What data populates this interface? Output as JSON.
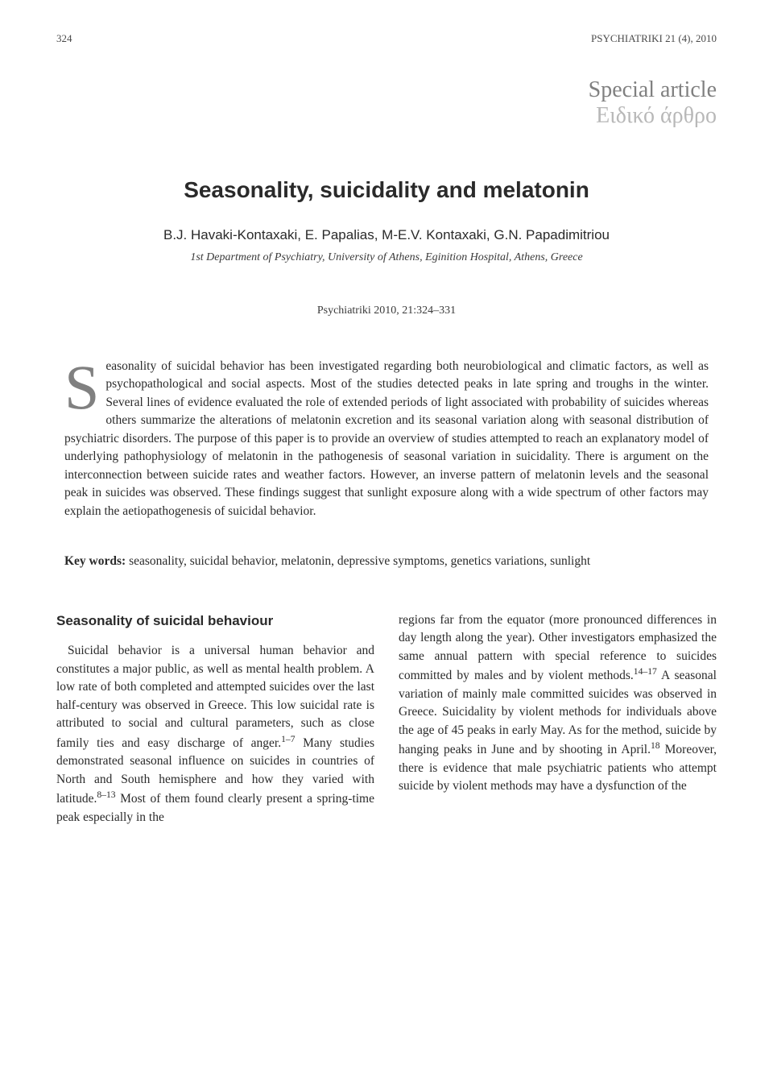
{
  "runningHead": {
    "pageNumber": "324",
    "journalRef": "PSYCHIATRIKI 21 (4), 2010"
  },
  "articleType": {
    "english": "Special article",
    "greek": "Ειδικό άρθρο"
  },
  "title": "Seasonality, suicidality and melatonin",
  "authors": "B.J. Havaki-Kontaxaki, E. Papalias, M-E.V. Kontaxaki, G.N. Papadimitriou",
  "affiliation": "1st Department of Psychiatry, University of Athens, Eginition Hospital, Athens, Greece",
  "citation": "Psychiatriki 2010, 21:324–331",
  "abstract": {
    "dropCap": "S",
    "body": "easonality of suicidal behavior has been investigated regarding both neurobiological and climatic factors, as well as psychopathological and social aspects. Most of the studies detected peaks in late spring and troughs in the winter. Several lines of evidence evaluated the role of extended periods of light associated with probability of suicides whereas others summarize the alterations of melatonin excretion and its seasonal variation along with seasonal distribution of psychiatric disorders. The purpose of this paper is to provide an overview of studies attempted to reach an explanatory model of underlying pathophysiology of melatonin in the pathogenesis of seasonal variation in suicidality. There is argument on the interconnection between suicide rates and weather factors. However, an inverse pattern of melatonin levels and the seasonal peak in suicides was observed. These findings suggest that sunlight exposure along with a wide spectrum of other factors may explain the aetiopathogenesis of suicidal behavior."
  },
  "keywords": {
    "label": "Key words:",
    "text": " seasonality, suicidal behavior, melatonin, depressive symptoms, genetics variations, sunlight"
  },
  "body": {
    "sectionHeading": "Seasonality of suicidal behaviour",
    "leftColumn": "Suicidal behavior is a universal human behavior and constitutes a major public, as well as mental health problem. A low rate of both completed and attempted suicides over the last half-century was observed in Greece. This low suicidal rate is attributed to social and cultural parameters, such as close family ties and easy discharge of anger.",
    "leftColumnSup1": "1–7",
    "leftColumnAfterSup1": " Many studies demonstrated seasonal influence on suicides in countries of North and South hemisphere and how they varied with latitude.",
    "leftColumnSup2": "8–13",
    "leftColumnAfterSup2": " Most of them found clearly present a spring-time peak especially in the",
    "rightColumnStart": "regions far from the equator (more pronounced differences in day length along the year). Other investigators emphasized the same annual pattern with special reference to suicides committed by males and by violent methods.",
    "rightColumnSup1": "14–17",
    "rightColumnAfterSup1": " A seasonal variation of mainly male committed suicides was observed in Greece. Suicidality by violent methods for individuals above the age of 45 peaks in early May. As for the method, suicide by hanging peaks in June and by shooting in April.",
    "rightColumnSup2": "18",
    "rightColumnAfterSup2": " Moreover, there is evidence that male psychiatric patients who attempt suicide by violent methods may have a dysfunction of the"
  },
  "styling": {
    "pageWidth": 960,
    "pageHeight": 1327,
    "backgroundColor": "#ffffff",
    "textColor": "#2a2a2a",
    "mutedColor": "#808080",
    "lightMutedColor": "#b8b8b8",
    "bodyFontSize": 15.5,
    "titleFontSize": 28,
    "headingFontSize": 17,
    "lineHeight": 1.45,
    "dropCapFontSize": 78,
    "columnGap": 30,
    "fontFamilyBody": "Times New Roman, Georgia, serif",
    "fontFamilyHeadings": "Arial, Helvetica, sans-serif"
  }
}
